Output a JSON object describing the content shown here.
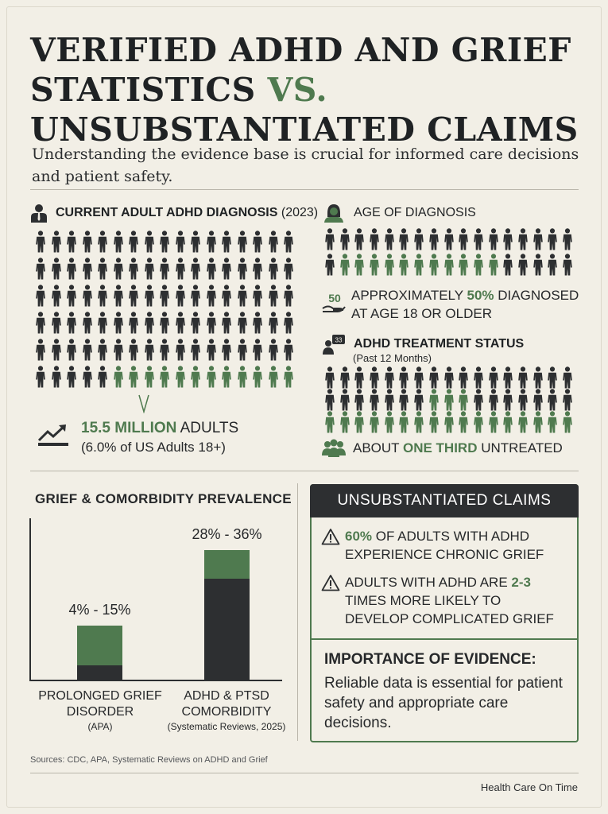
{
  "title": {
    "line1": "VERIFIED ADHD AND GRIEF",
    "line2_a": "STATISTICS ",
    "line2_vs": "VS.",
    "line3": "UNSUBSTANTIATED CLAIMS"
  },
  "subtitle": "Understanding the evidence base is crucial for informed care decisions and patient safety.",
  "diagnosis": {
    "heading": "CURRENT ADULT ADHD DIAGNOSIS",
    "heading_year": "(2023)",
    "highlight_value": "15.5 MILLION",
    "highlight_suffix": " ADULTS",
    "detail": "(6.0% of US Adults 18+)",
    "grid": {
      "rows": 6,
      "cols": 17,
      "highlighted_last_row": 12
    }
  },
  "age": {
    "heading": "AGE OF DIAGNOSIS",
    "badge": "50",
    "line1_a": "APPROXIMATELY ",
    "line1_b": "50%",
    "line1_c": " DIAGNOSED",
    "line2": "AT AGE 18 OR OLDER",
    "grid": {
      "rows": 2,
      "cols": 17,
      "highlighted_row2_start": 1,
      "highlighted_row2_end": 11
    }
  },
  "treatment": {
    "heading": "ADHD TREATMENT STATUS",
    "subheading": "(Past 12 Months)",
    "line_a": "ABOUT ",
    "line_b": "ONE THIRD",
    "line_c": " UNTREATED",
    "grid": {
      "rows": 3,
      "cols": 17,
      "highlighted_row2_start": 7,
      "highlighted_row2_end": 9
    }
  },
  "chart_data": {
    "type": "bar",
    "title": "GRIEF & COMORBIDITY PREVALENCE",
    "categories": [
      "PROLONGED GRIEF DISORDER",
      "ADHD & PTSD COMORBIDITY"
    ],
    "category_lines": [
      [
        "PROLONGED GRIEF",
        "DISORDER"
      ],
      [
        "ADHD & PTSD",
        "COMORBIDITY"
      ]
    ],
    "category_sources": [
      "(APA)",
      "(Systematic Reviews, 2025)"
    ],
    "value_labels": [
      "4% - 15%",
      "28% - 36%"
    ],
    "ranges": [
      [
        4,
        15
      ],
      [
        28,
        36
      ]
    ],
    "ylim": [
      0,
      45
    ],
    "colors": {
      "low": "#2d2f31",
      "range": "#4f7a4f"
    }
  },
  "claims": {
    "heading": "UNSUBSTANTIATED CLAIMS",
    "items": [
      {
        "a": "",
        "b": "60%",
        "c": " OF ADULTS WITH ADHD",
        "line2": "EXPERIENCE CHRONIC GRIEF"
      },
      {
        "a": "ADULTS WITH ADHD ARE ",
        "b": "2-3",
        "c": "",
        "line2": "TIMES MORE LIKELY TO",
        "line3": "DEVELOP COMPLICATED GRIEF"
      }
    ],
    "evidence_title": "IMPORTANCE OF EVIDENCE:",
    "evidence_text": "Reliable data is essential for patient safety and appropriate care decisions."
  },
  "sources": "Sources: CDC, APA, Systematic Reviews on ADHD and Grief",
  "brand": "Health Care On Time",
  "colors": {
    "dark": "#2d2f31",
    "accent": "#4f7a4f",
    "background": "#f2efe6"
  }
}
